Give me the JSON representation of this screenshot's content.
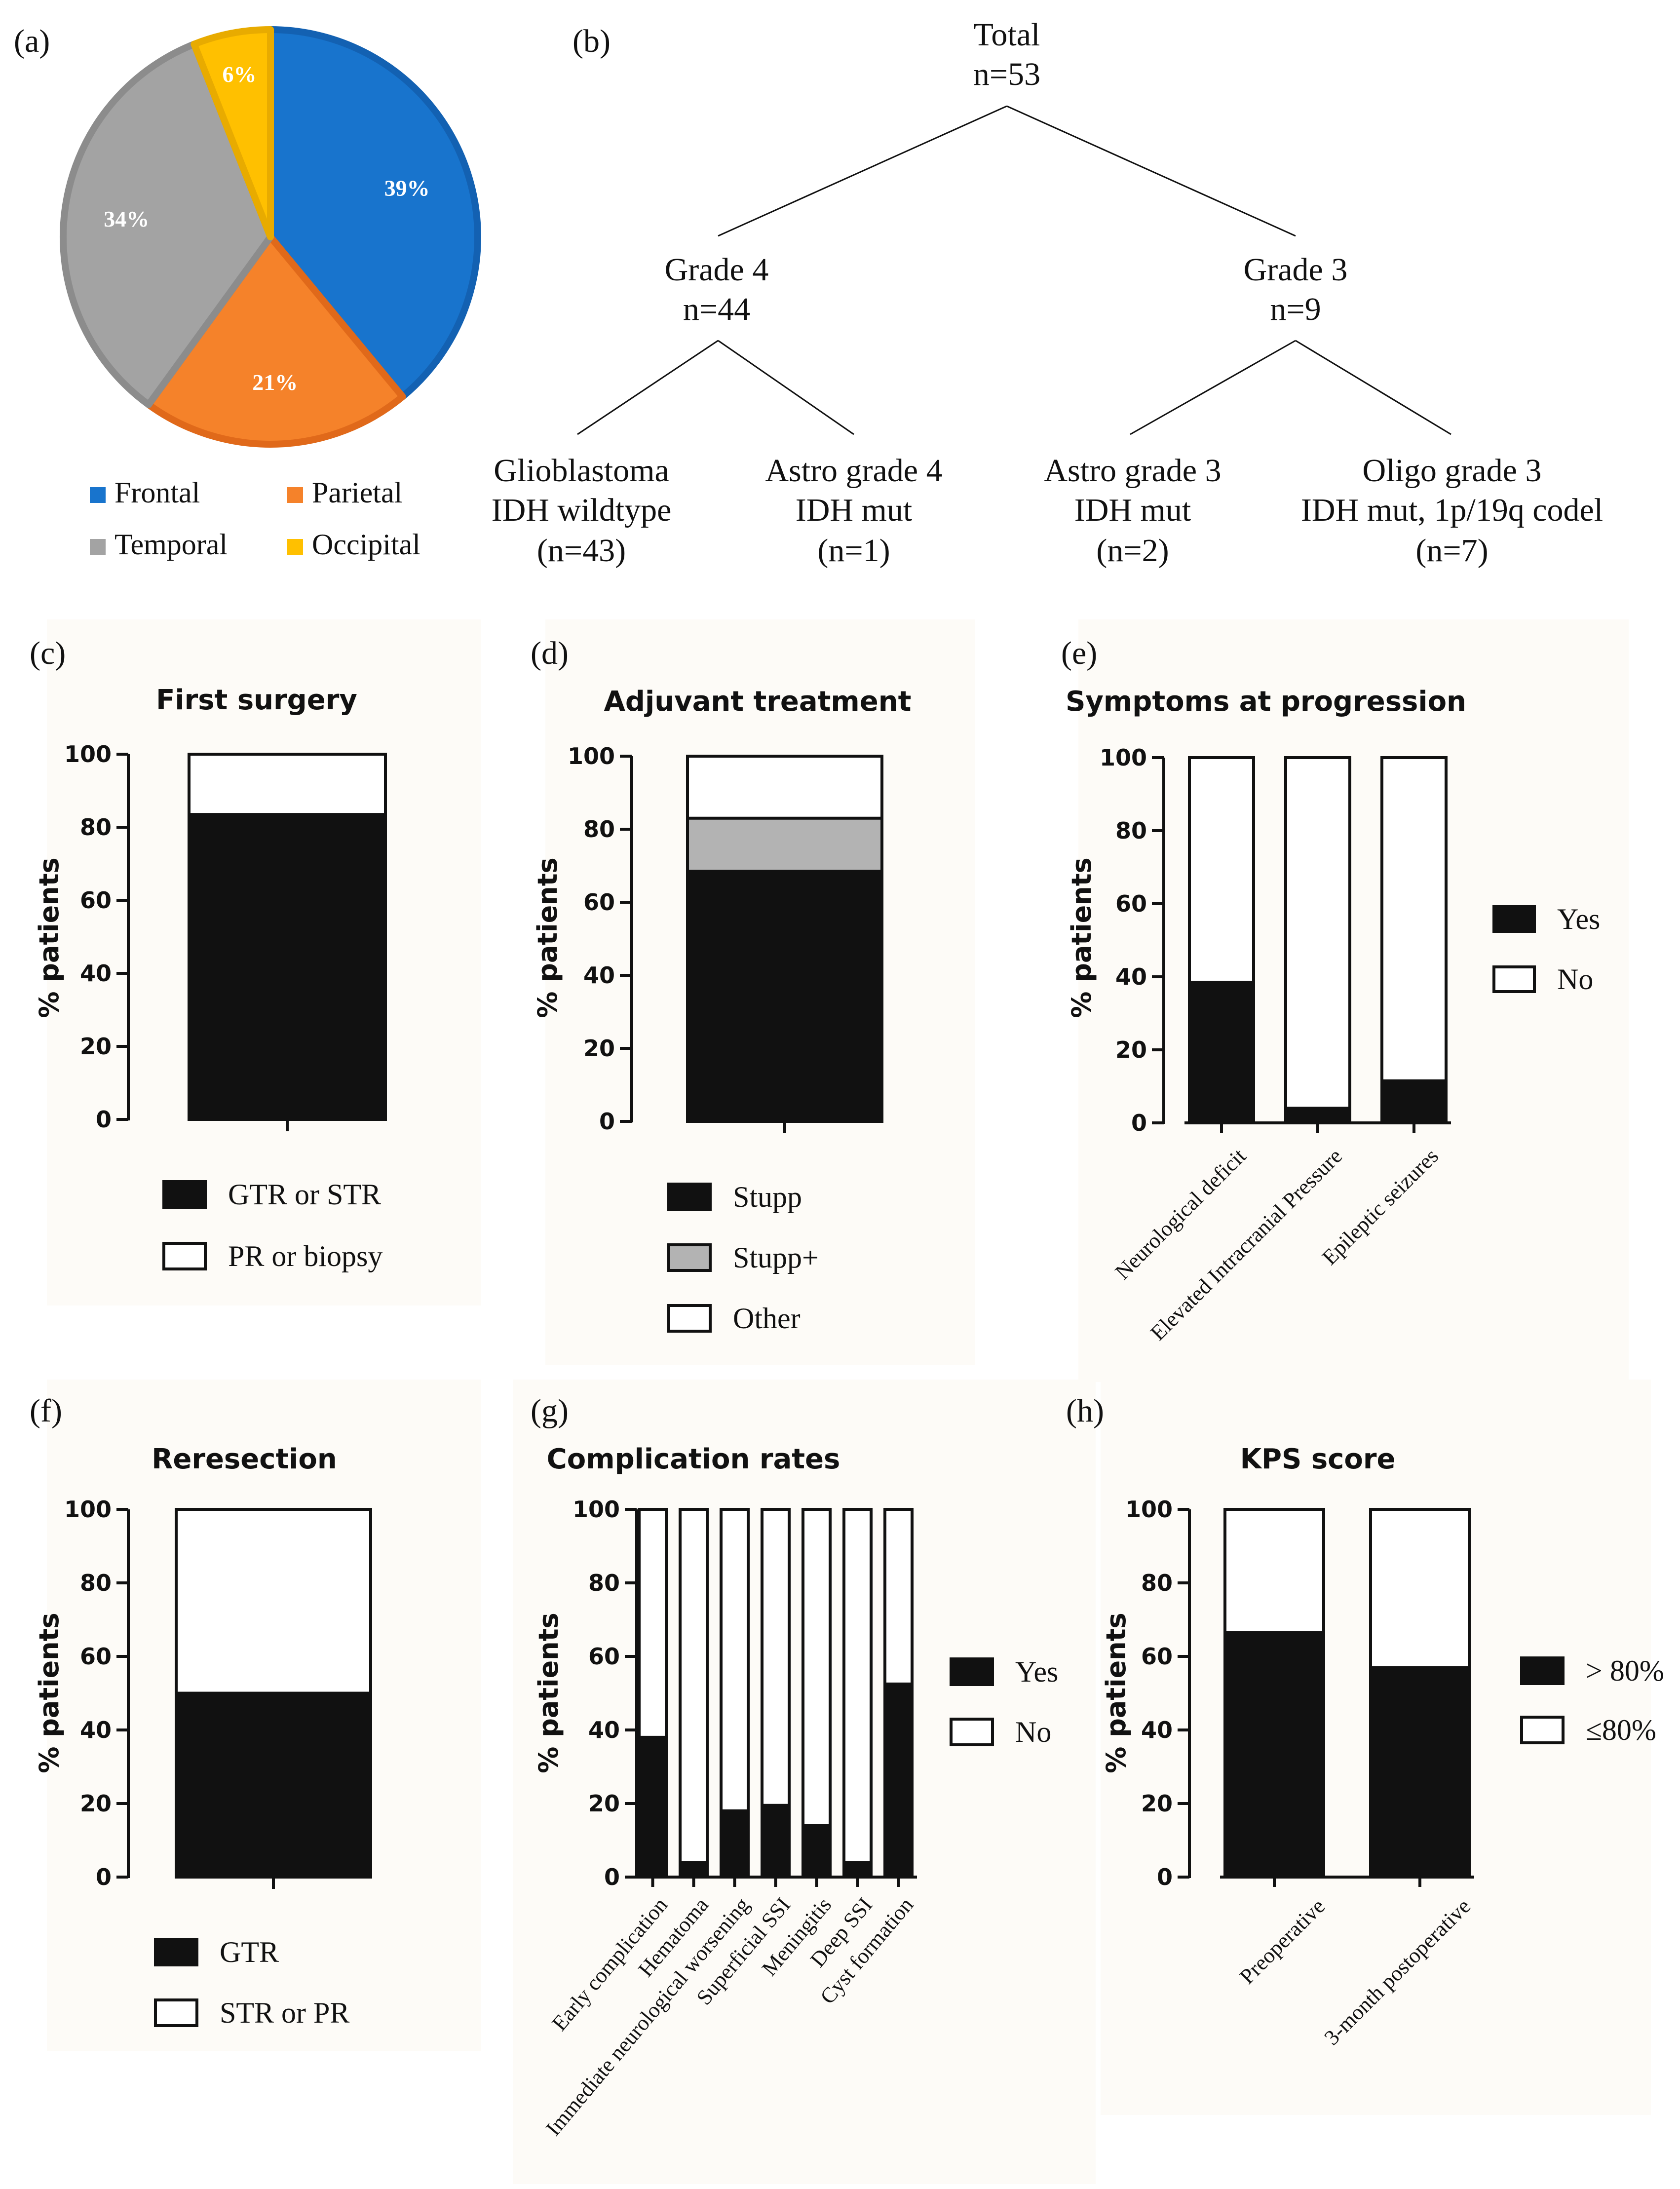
{
  "panel_labels": {
    "a": "(a)",
    "b": "(b)",
    "c": "(c)",
    "d": "(d)",
    "e": "(e)",
    "f": "(f)",
    "g": "(g)",
    "h": "(h)"
  },
  "colors": {
    "frontal": "#1874cd",
    "frontal_edge": "#1361b2",
    "parietal": "#f5822a",
    "parietal_edge": "#e0691a",
    "temporal": "#a3a3a3",
    "temporal_edge": "#8c8c8c",
    "occipital": "#ffc000",
    "occipital_edge": "#e8ab00",
    "black": "#111111",
    "white": "#ffffff",
    "gray": "#b3b3b3"
  },
  "tree": {
    "root": {
      "line1": "Total",
      "line2": "n=53"
    },
    "grade4": {
      "line1": "Grade 4",
      "line2": "n=44"
    },
    "grade3": {
      "line1": "Grade 3",
      "line2": "n=9"
    },
    "leaves": [
      {
        "line1": "Glioblastoma",
        "line2": "IDH wildtype",
        "line3": "(n=43)"
      },
      {
        "line1": "Astro grade 4",
        "line2": "IDH mut",
        "line3": "(n=1)"
      },
      {
        "line1": "Astro grade 3",
        "line2": "IDH mut",
        "line3": "(n=2)"
      },
      {
        "line1": "Oligo grade 3",
        "line2": "IDH mut, 1p/19q codel",
        "line3": "(n=7)"
      }
    ]
  },
  "chart_data": [
    {
      "id": "a",
      "type": "pie",
      "slices": [
        {
          "name": "Frontal",
          "value": 39,
          "label": "39%",
          "color_key": "frontal"
        },
        {
          "name": "Parietal",
          "value": 21,
          "label": "21%",
          "color_key": "parietal"
        },
        {
          "name": "Temporal",
          "value": 34,
          "label": "34%",
          "color_key": "temporal"
        },
        {
          "name": "Occipital",
          "value": 6,
          "label": "6%",
          "color_key": "occipital"
        }
      ],
      "legend": [
        "Frontal",
        "Parietal",
        "Temporal",
        "Occipital"
      ]
    },
    {
      "id": "c",
      "type": "bar",
      "stacked": true,
      "title": "First surgery",
      "ylabel": "% patients",
      "yticks": [
        "0",
        "20",
        "40",
        "60",
        "80",
        "100"
      ],
      "ylim": [
        0,
        100
      ],
      "categories": [
        ""
      ],
      "series": [
        {
          "name": "GTR or STR",
          "color_key": "black",
          "values": [
            83.5
          ]
        },
        {
          "name": "PR or biopsy",
          "color_key": "white",
          "values": [
            16.5
          ]
        }
      ]
    },
    {
      "id": "d",
      "type": "bar",
      "stacked": true,
      "title": "Adjuvant treatment",
      "ylabel": "% patients",
      "yticks": [
        "0",
        "20",
        "40",
        "60",
        "80",
        "100"
      ],
      "ylim": [
        0,
        100
      ],
      "categories": [
        ""
      ],
      "series": [
        {
          "name": "Stupp",
          "color_key": "black",
          "values": [
            68.5
          ]
        },
        {
          "name": "Stupp+",
          "color_key": "gray",
          "values": [
            14.5
          ]
        },
        {
          "name": "Other",
          "color_key": "white",
          "values": [
            17
          ]
        }
      ]
    },
    {
      "id": "e",
      "type": "bar",
      "stacked": true,
      "title": "Symptoms at progression",
      "ylabel": "% patients",
      "yticks": [
        "0",
        "20",
        "40",
        "60",
        "80",
        "100"
      ],
      "ylim": [
        0,
        100
      ],
      "categories": [
        "Neurological deficit",
        "Elevated Intracranial Pressure",
        "Epileptic seizures"
      ],
      "series": [
        {
          "name": "Yes",
          "color_key": "black",
          "values": [
            38.5,
            4,
            11.5
          ]
        },
        {
          "name": "No",
          "color_key": "white",
          "values": [
            61.5,
            96,
            88.5
          ]
        }
      ]
    },
    {
      "id": "f",
      "type": "bar",
      "stacked": true,
      "title": "Reresection",
      "ylabel": "% patients",
      "yticks": [
        "0",
        "20",
        "40",
        "60",
        "80",
        "100"
      ],
      "ylim": [
        0,
        100
      ],
      "categories": [
        ""
      ],
      "series": [
        {
          "name": "GTR",
          "color_key": "black",
          "values": [
            50
          ]
        },
        {
          "name": "STR or PR",
          "color_key": "white",
          "values": [
            50
          ]
        }
      ]
    },
    {
      "id": "g",
      "type": "bar",
      "stacked": true,
      "title": "Complication rates",
      "ylabel": "% patients",
      "yticks": [
        "0",
        "20",
        "40",
        "60",
        "80",
        "100"
      ],
      "ylim": [
        0,
        100
      ],
      "categories": [
        "Early complication",
        "Hematoma",
        "Immediate neurological worsening",
        "Superficial SSI",
        "Meningitis",
        "Deep SSI",
        "Cyst formation"
      ],
      "series": [
        {
          "name": "Yes",
          "color_key": "black",
          "values": [
            38,
            4,
            18,
            19.5,
            14,
            4,
            52.5
          ]
        },
        {
          "name": "No",
          "color_key": "white",
          "values": [
            62,
            96,
            82,
            80.5,
            86,
            96,
            47.5
          ]
        }
      ]
    },
    {
      "id": "h",
      "type": "bar",
      "stacked": true,
      "title": "KPS score",
      "ylabel": "% patients",
      "yticks": [
        "0",
        "20",
        "40",
        "60",
        "80",
        "100"
      ],
      "ylim": [
        0,
        100
      ],
      "categories": [
        "Preoperative",
        "3-month postoperative"
      ],
      "series": [
        {
          "name": "> 80%",
          "color_key": "black",
          "values": [
            66.5,
            57
          ]
        },
        {
          "name": "≤80%",
          "color_key": "white",
          "values": [
            33.5,
            43
          ]
        }
      ]
    }
  ]
}
